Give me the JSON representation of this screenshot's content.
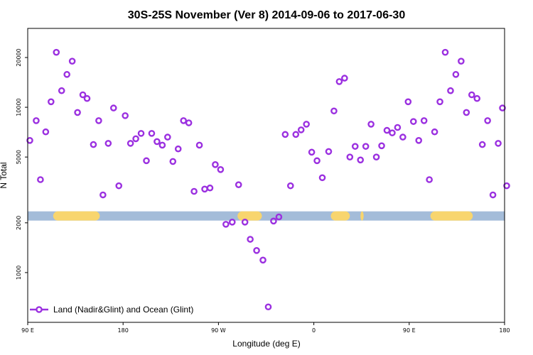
{
  "chart_data": {
    "type": "scatter",
    "title": "30S-25S November (Ver 8)   2014-09-06 to 2017-06-30",
    "xlabel": "Longitude (deg E)",
    "ylabel": "N Total",
    "x_ticks": [
      {
        "value": 90,
        "label": "90 E"
      },
      {
        "value": 180,
        "label": "180"
      },
      {
        "value": 270,
        "label": "90 W"
      },
      {
        "value": 360,
        "label": "0"
      },
      {
        "value": 450,
        "label": "90 E"
      },
      {
        "value": 540,
        "label": "180"
      }
    ],
    "y_ticks": [
      {
        "value": 1000,
        "label": "1000"
      },
      {
        "value": 2000,
        "label": "2000"
      },
      {
        "value": 5000,
        "label": "5000"
      },
      {
        "value": 10000,
        "label": "10000"
      },
      {
        "value": 20000,
        "label": "20000"
      }
    ],
    "xlim": [
      90,
      540
    ],
    "ylim": [
      500,
      30000
    ],
    "y_scale": "log",
    "grid": false,
    "legend_position": "bottom-left",
    "series": [
      {
        "name": "Land (Nadir&Glint) and Ocean (Glint)",
        "color": "#9B30E0",
        "marker": "open-circle",
        "points": [
          [
            92,
            6300
          ],
          [
            98,
            8300
          ],
          [
            102,
            3650
          ],
          [
            107,
            7100
          ],
          [
            112,
            10800
          ],
          [
            117,
            21500
          ],
          [
            122,
            12600
          ],
          [
            127,
            15800
          ],
          [
            132,
            19000
          ],
          [
            137,
            9300
          ],
          [
            142,
            11900
          ],
          [
            146,
            11300
          ],
          [
            152,
            5950
          ],
          [
            157,
            8300
          ],
          [
            161,
            2950
          ],
          [
            166,
            6050
          ],
          [
            171,
            9900
          ],
          [
            176,
            3350
          ],
          [
            182,
            8900
          ],
          [
            187,
            6050
          ],
          [
            192,
            6450
          ],
          [
            197,
            6950
          ],
          [
            202,
            4750
          ],
          [
            207,
            6950
          ],
          [
            212,
            6200
          ],
          [
            217,
            5900
          ],
          [
            222,
            6600
          ],
          [
            227,
            4700
          ],
          [
            232,
            5600
          ],
          [
            237,
            8300
          ],
          [
            242,
            8050
          ],
          [
            247,
            3100
          ],
          [
            252,
            5900
          ],
          [
            257,
            3200
          ],
          [
            262,
            3250
          ],
          [
            267,
            4500
          ],
          [
            272,
            4200
          ],
          [
            277,
            1960
          ],
          [
            283,
            2020
          ],
          [
            289,
            3400
          ],
          [
            295,
            2020
          ],
          [
            300,
            1590
          ],
          [
            306,
            1360
          ],
          [
            312,
            1190
          ],
          [
            317,
            620
          ],
          [
            322,
            2050
          ],
          [
            327,
            2170
          ],
          [
            333,
            6850
          ],
          [
            338,
            3350
          ],
          [
            343,
            6850
          ],
          [
            348,
            7300
          ],
          [
            353,
            7900
          ],
          [
            358,
            5350
          ],
          [
            363,
            4750
          ],
          [
            368,
            3750
          ],
          [
            374,
            5400
          ],
          [
            379,
            9500
          ],
          [
            384,
            14300
          ],
          [
            389,
            15000
          ],
          [
            394,
            5000
          ],
          [
            399,
            5800
          ],
          [
            404,
            4800
          ],
          [
            409,
            5800
          ],
          [
            414,
            7900
          ],
          [
            419,
            5000
          ],
          [
            424,
            5850
          ],
          [
            429,
            7250
          ],
          [
            434,
            7000
          ],
          [
            439,
            7550
          ],
          [
            444,
            6600
          ],
          [
            449,
            10800
          ],
          [
            454,
            8200
          ],
          [
            459,
            6300
          ],
          [
            464,
            8300
          ],
          [
            469,
            3650
          ],
          [
            474,
            7100
          ],
          [
            479,
            10800
          ],
          [
            484,
            21500
          ],
          [
            489,
            12600
          ],
          [
            494,
            15800
          ],
          [
            499,
            19000
          ],
          [
            504,
            9300
          ],
          [
            509,
            11900
          ],
          [
            514,
            11300
          ],
          [
            519,
            5950
          ],
          [
            524,
            8300
          ],
          [
            529,
            2950
          ],
          [
            534,
            6050
          ],
          [
            538,
            9900
          ],
          [
            542,
            3350
          ]
        ]
      }
    ],
    "band": {
      "value": 2200,
      "base_color": "#A4BCD9",
      "land_color": "#F8D56E",
      "land_segments": [
        [
          114,
          158
        ],
        [
          288,
          311
        ],
        [
          376,
          394
        ],
        [
          404,
          407
        ],
        [
          470,
          510
        ]
      ]
    }
  }
}
